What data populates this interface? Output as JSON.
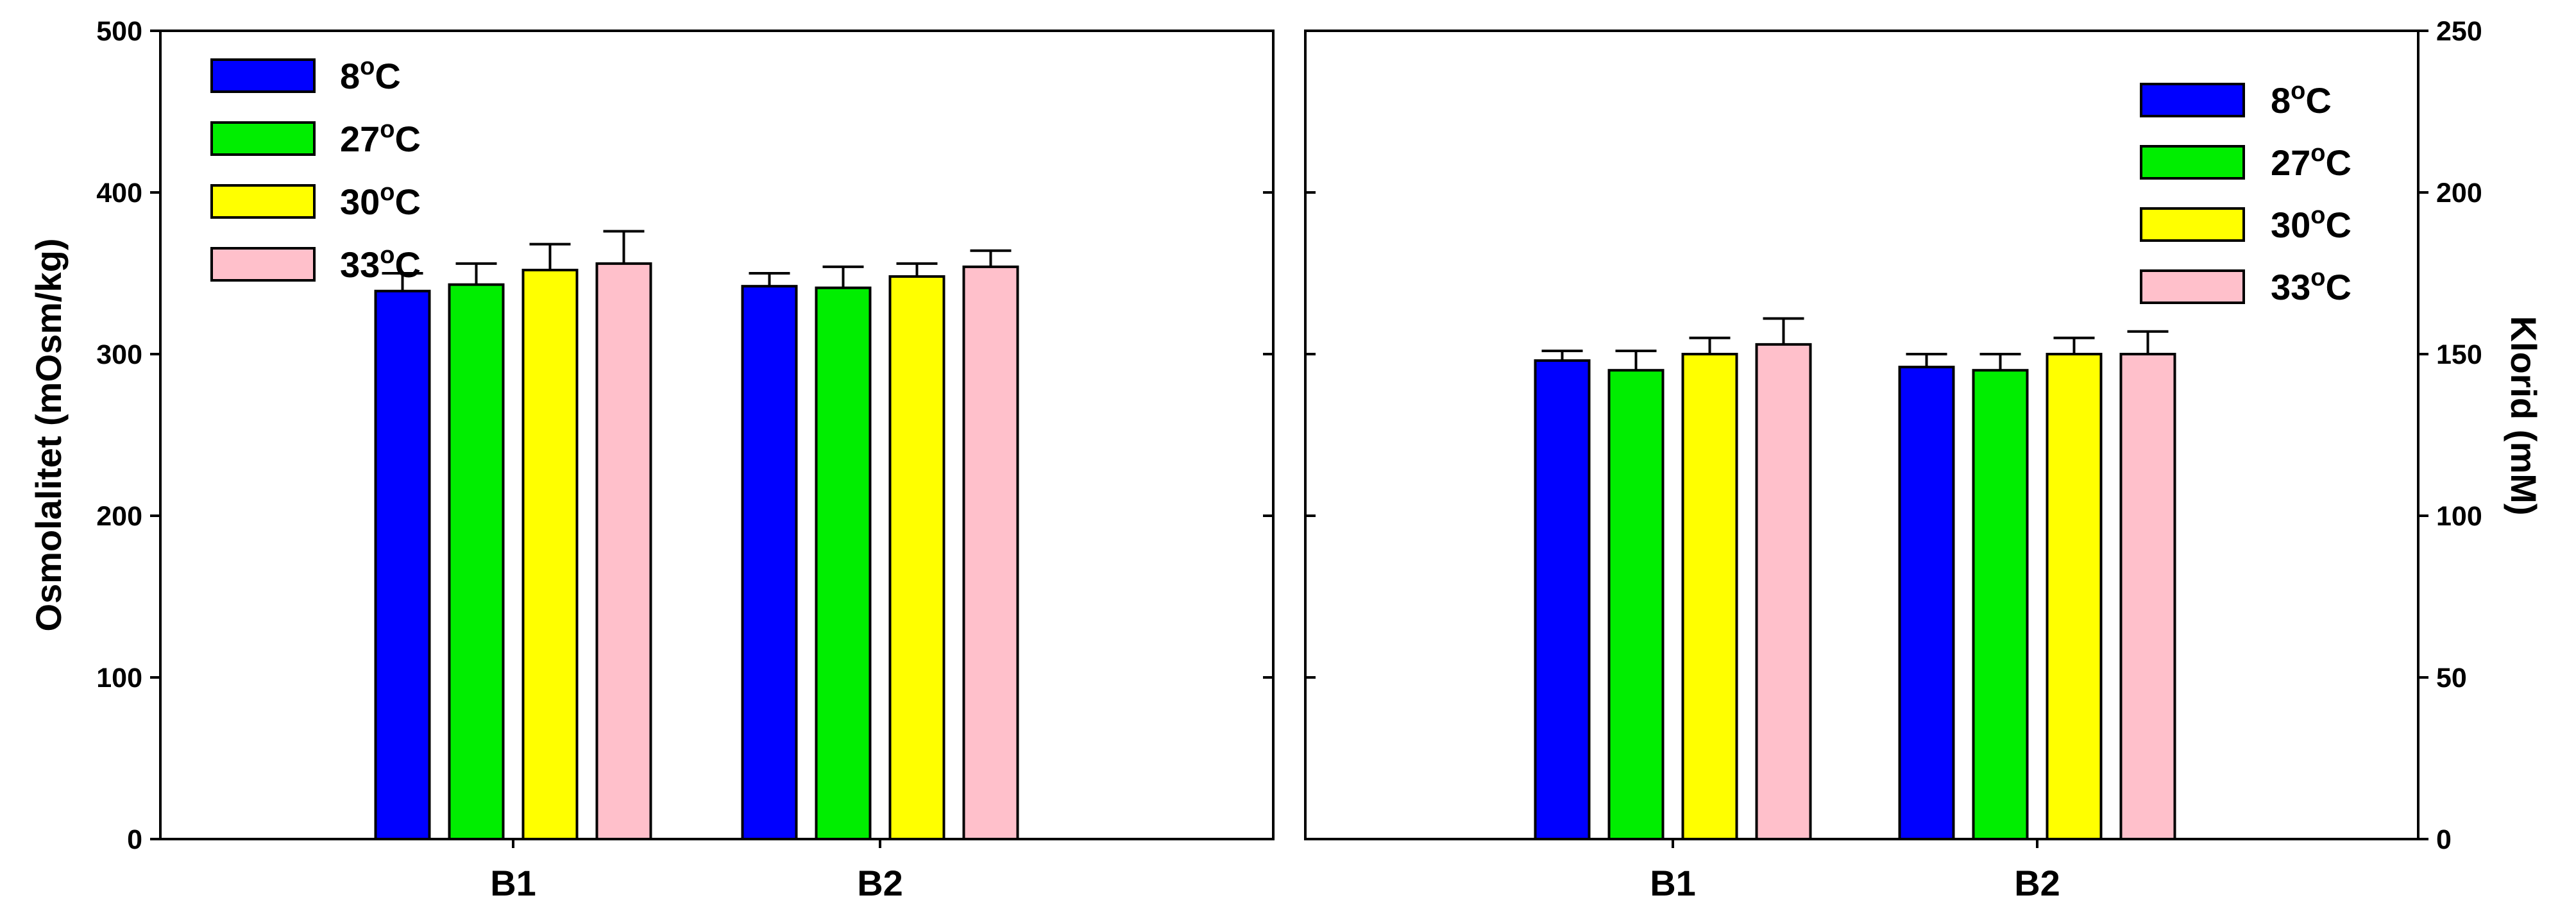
{
  "chart_data": [
    {
      "type": "bar",
      "categories": [
        "B1",
        "B2"
      ],
      "ylabel": "Osmolalitet (mOsm/kg)",
      "xlabel": "",
      "ylim": [
        0,
        500
      ],
      "yticks": [
        "0",
        "100",
        "200",
        "300",
        "400",
        "500"
      ],
      "y_axis_side": "left",
      "legend_position": "top-left",
      "grid": false,
      "series": [
        {
          "name": "8",
          "unit": "C",
          "color": "#0000ff",
          "values": [
            339,
            342
          ],
          "errors": [
            11,
            8
          ]
        },
        {
          "name": "27",
          "unit": "C",
          "color": "#00ee00",
          "values": [
            343,
            341
          ],
          "errors": [
            13,
            13
          ]
        },
        {
          "name": "30",
          "unit": "C",
          "color": "#ffff00",
          "values": [
            352,
            348
          ],
          "errors": [
            16,
            8
          ]
        },
        {
          "name": "33",
          "unit": "C",
          "color": "#ffc0cb",
          "values": [
            356,
            354
          ],
          "errors": [
            20,
            10
          ]
        }
      ]
    },
    {
      "type": "bar",
      "categories": [
        "B1",
        "B2"
      ],
      "ylabel": "Klorid (mM)",
      "xlabel": "",
      "ylim": [
        0,
        250
      ],
      "yticks": [
        "0",
        "50",
        "100",
        "150",
        "200",
        "250"
      ],
      "y_axis_side": "right",
      "legend_position": "top-right",
      "grid": false,
      "series": [
        {
          "name": "8",
          "unit": "C",
          "color": "#0000ff",
          "values": [
            148,
            146
          ],
          "errors": [
            3,
            4
          ]
        },
        {
          "name": "27",
          "unit": "C",
          "color": "#00ee00",
          "values": [
            145,
            145
          ],
          "errors": [
            6,
            5
          ]
        },
        {
          "name": "30",
          "unit": "C",
          "color": "#ffff00",
          "values": [
            150,
            150
          ],
          "errors": [
            5,
            5
          ]
        },
        {
          "name": "33",
          "unit": "C",
          "color": "#ffc0cb",
          "values": [
            153,
            150
          ],
          "errors": [
            8,
            7
          ]
        }
      ]
    }
  ]
}
